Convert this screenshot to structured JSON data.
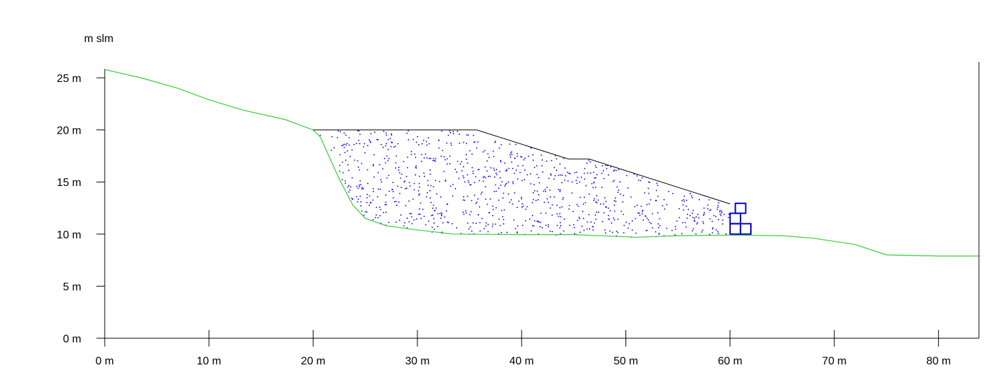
{
  "title": "",
  "y_unit_label": "m slm",
  "x_axis": {
    "range": [
      0,
      84
    ],
    "ticks": [
      0,
      10,
      20,
      30,
      40,
      50,
      60,
      70,
      80
    ],
    "tick_labels": [
      "0 m",
      "10 m",
      "20 m",
      "30 m",
      "40 m",
      "50 m",
      "60 m",
      "70 m",
      "80 m"
    ]
  },
  "y_axis": {
    "range": [
      0,
      27
    ],
    "ticks": [
      0,
      5,
      10,
      15,
      20,
      25
    ],
    "tick_labels": [
      "0 m",
      "5 m",
      "10 m",
      "15 m",
      "20 m",
      "25 m"
    ]
  },
  "colors": {
    "ground": "#33cc33",
    "fill_surface": "#000000",
    "fill_dots": "#0000ff",
    "gabion": "#0000cc"
  },
  "ground_profile": [
    [
      0,
      25.8
    ],
    [
      3.5,
      25.0
    ],
    [
      7,
      24.0
    ],
    [
      10,
      22.9
    ],
    [
      13.3,
      21.9
    ],
    [
      17.3,
      21.0
    ],
    [
      20,
      20.0
    ],
    [
      20.7,
      19.3
    ],
    [
      21.5,
      17.5
    ],
    [
      22.5,
      15.3
    ],
    [
      23.8,
      12.8
    ],
    [
      25,
      11.5
    ],
    [
      27,
      10.8
    ],
    [
      30,
      10.4
    ],
    [
      33.5,
      10.0
    ],
    [
      40,
      9.95
    ],
    [
      45,
      9.95
    ],
    [
      51,
      9.7
    ],
    [
      55,
      9.85
    ],
    [
      60,
      9.9
    ],
    [
      65,
      9.85
    ],
    [
      68,
      9.6
    ],
    [
      72,
      9.0
    ],
    [
      75,
      8.0
    ],
    [
      80,
      7.9
    ],
    [
      84,
      7.9
    ]
  ],
  "fill_surface_profile": [
    [
      20,
      20.0
    ],
    [
      35.7,
      20.0
    ],
    [
      44.5,
      17.2
    ],
    [
      46.5,
      17.2
    ],
    [
      60,
      12.9
    ]
  ],
  "gabions": [
    [
      60,
      10.0,
      1,
      1
    ],
    [
      61,
      10.0,
      1,
      1
    ],
    [
      60,
      11.0,
      1,
      1
    ],
    [
      60.5,
      12.0,
      1,
      0.95
    ]
  ],
  "fill_region": {
    "top": [
      [
        20,
        20.0
      ],
      [
        35.7,
        20.0
      ],
      [
        44.5,
        17.2
      ],
      [
        46.5,
        17.2
      ],
      [
        60,
        12.9
      ]
    ],
    "bottom": [
      [
        20,
        20.0
      ],
      [
        20.7,
        19.3
      ],
      [
        21.5,
        17.5
      ],
      [
        22.5,
        15.3
      ],
      [
        23.8,
        12.8
      ],
      [
        25,
        11.5
      ],
      [
        27,
        10.8
      ],
      [
        30,
        10.4
      ],
      [
        33.5,
        10.0
      ],
      [
        40,
        9.95
      ],
      [
        45,
        9.95
      ],
      [
        51,
        9.7
      ],
      [
        55,
        9.85
      ],
      [
        60,
        9.9
      ]
    ],
    "dot_count": 900
  }
}
